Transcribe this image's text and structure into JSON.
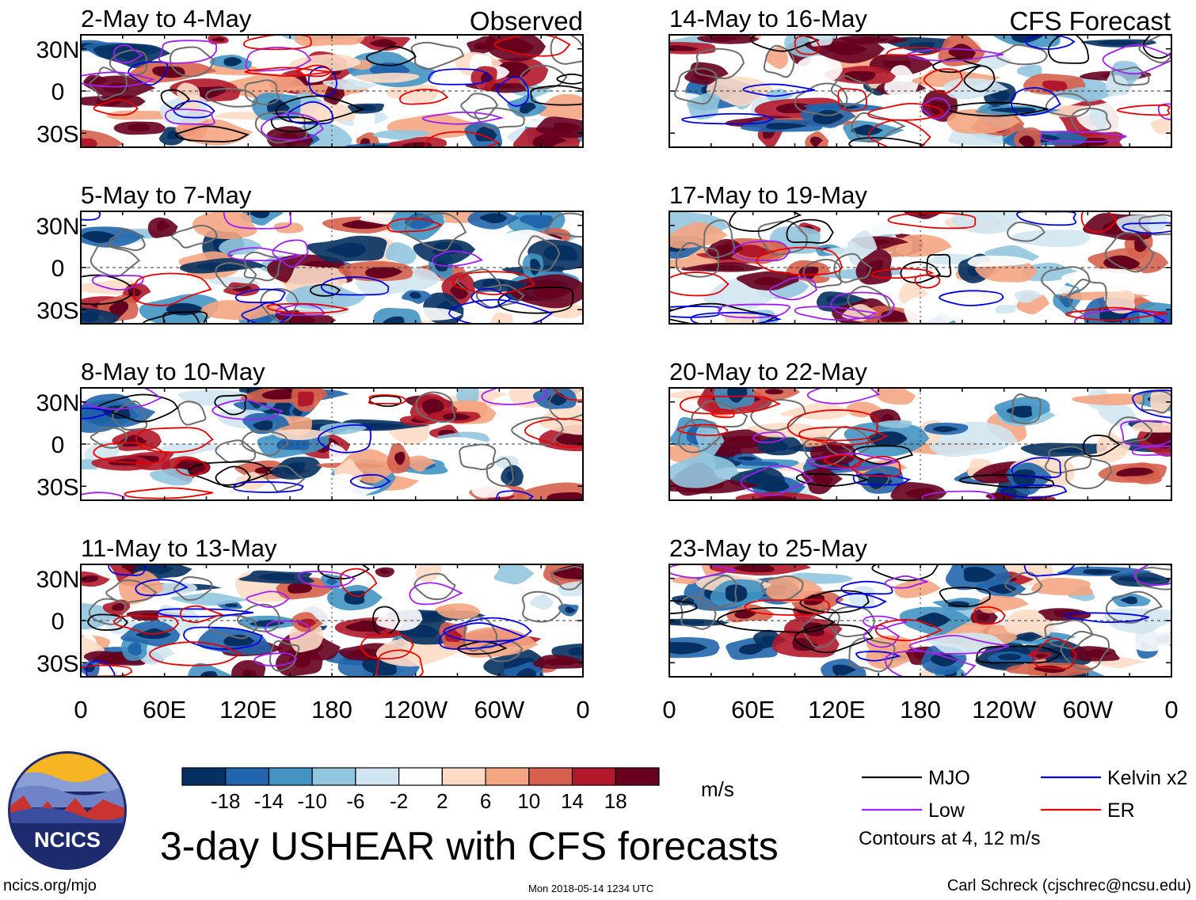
{
  "figure": {
    "title": "3-day USHEAR with CFS forecasts",
    "units": "m/s",
    "footer_left": "ncics.org/mjo",
    "footer_timestamp": "Mon 2018-05-14 1234 UTC",
    "footer_right": "Carl Schreck (cjschrec@ncsu.edu)",
    "logo_text": "NCICS"
  },
  "columns": [
    {
      "header": "Observed"
    },
    {
      "header": "CFS Forecast"
    }
  ],
  "axes": {
    "x_ticks_left": [
      "0",
      "60E",
      "120E",
      "180",
      "120W",
      "60W",
      "0"
    ],
    "x_ticks_right": [
      "0",
      "60E",
      "120E",
      "180",
      "120W",
      "60W",
      "0"
    ],
    "y_ticks": [
      "30N",
      "0",
      "30S"
    ]
  },
  "panels": [
    {
      "label": "2-May to 4-May",
      "col": 0,
      "row": 0,
      "seed": 11
    },
    {
      "label": "5-May to 7-May",
      "col": 0,
      "row": 1,
      "seed": 23
    },
    {
      "label": "8-May to 10-May",
      "col": 0,
      "row": 2,
      "seed": 37
    },
    {
      "label": "11-May to 13-May",
      "col": 0,
      "row": 3,
      "seed": 41
    },
    {
      "label": "14-May to 16-May",
      "col": 1,
      "row": 0,
      "seed": 53
    },
    {
      "label": "17-May to 19-May",
      "col": 1,
      "row": 1,
      "seed": 67
    },
    {
      "label": "20-May to 22-May",
      "col": 1,
      "row": 2,
      "seed": 71
    },
    {
      "label": "23-May to 25-May",
      "col": 1,
      "row": 3,
      "seed": 89
    }
  ],
  "chart_data": {
    "type": "heatmap",
    "title": "3-day USHEAR with CFS forecasts",
    "variable": "USHEAR",
    "units": "m/s",
    "x_range": [
      0,
      360
    ],
    "y_range": [
      -40,
      40
    ],
    "x_ticks": [
      "0",
      "60E",
      "120E",
      "180",
      "120W",
      "60W",
      "0"
    ],
    "y_ticks": [
      "30N",
      "0",
      "30S"
    ],
    "colorbar": {
      "levels": [
        -18,
        -14,
        -10,
        -6,
        -2,
        2,
        6,
        10,
        14,
        18
      ],
      "tick_labels": [
        "-18",
        "-14",
        "-10",
        "-6",
        "-2",
        "2",
        "6",
        "10",
        "14",
        "18"
      ],
      "colors": [
        "#053061",
        "#2166ac",
        "#4393c3",
        "#92c5de",
        "#d1e5f0",
        "#ffffff",
        "#fddbc7",
        "#f4a582",
        "#d6604d",
        "#b2182b",
        "#67001f"
      ]
    },
    "contour_legend": [
      {
        "name": "MJO",
        "color": "#000000"
      },
      {
        "name": "Kelvin x2",
        "color": "#0000e6"
      },
      {
        "name": "Low",
        "color": "#a020f0"
      },
      {
        "name": "ER",
        "color": "#e60000"
      }
    ],
    "contour_note": "Contours at 4, 12 m/s"
  }
}
